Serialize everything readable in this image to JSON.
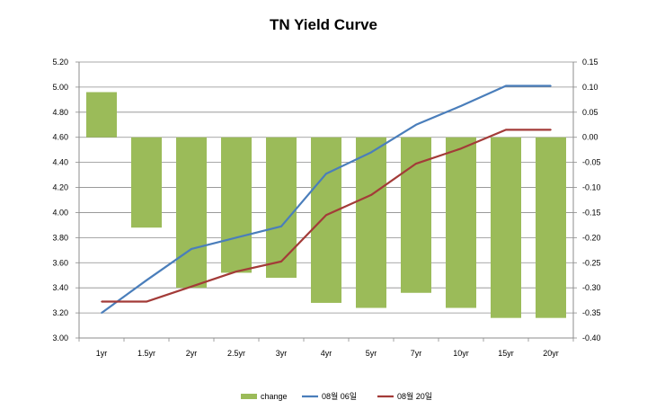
{
  "chart_data": {
    "type": "bar",
    "title": "TN Yield Curve",
    "categories": [
      "1yr",
      "1.5yr",
      "2yr",
      "2.5yr",
      "3yr",
      "4yr",
      "5yr",
      "7yr",
      "10yr",
      "15yr",
      "20yr"
    ],
    "series": [
      {
        "name": "change",
        "type": "bar",
        "axis": "right",
        "color": "#9bbb59",
        "values": [
          0.09,
          -0.18,
          -0.3,
          -0.27,
          -0.28,
          -0.33,
          -0.34,
          -0.31,
          -0.34,
          -0.36,
          -0.36
        ]
      },
      {
        "name": "08월 06일",
        "type": "line",
        "axis": "left",
        "color": "#4a7ebb",
        "values": [
          3.2,
          3.46,
          3.71,
          3.8,
          3.89,
          4.31,
          4.48,
          4.7,
          4.85,
          5.01,
          5.01
        ]
      },
      {
        "name": "08월 20일",
        "type": "line",
        "axis": "left",
        "color": "#a33b38",
        "values": [
          3.29,
          3.29,
          3.41,
          3.53,
          3.61,
          3.98,
          4.14,
          4.39,
          4.51,
          4.66,
          4.66
        ]
      }
    ],
    "yleft": {
      "min": 3.0,
      "max": 5.2,
      "step": 0.2,
      "ticks": [
        "3.00",
        "3.20",
        "3.40",
        "3.60",
        "3.80",
        "4.00",
        "4.20",
        "4.40",
        "4.60",
        "4.80",
        "5.00",
        "5.20"
      ]
    },
    "yright": {
      "min": -0.4,
      "max": 0.15,
      "step": 0.05,
      "ticks": [
        "-0.40",
        "-0.35",
        "-0.30",
        "-0.25",
        "-0.20",
        "-0.15",
        "-0.10",
        "-0.05",
        "0.00",
        "0.05",
        "0.10",
        "0.15"
      ]
    },
    "grid": true,
    "legend_position": "bottom"
  }
}
